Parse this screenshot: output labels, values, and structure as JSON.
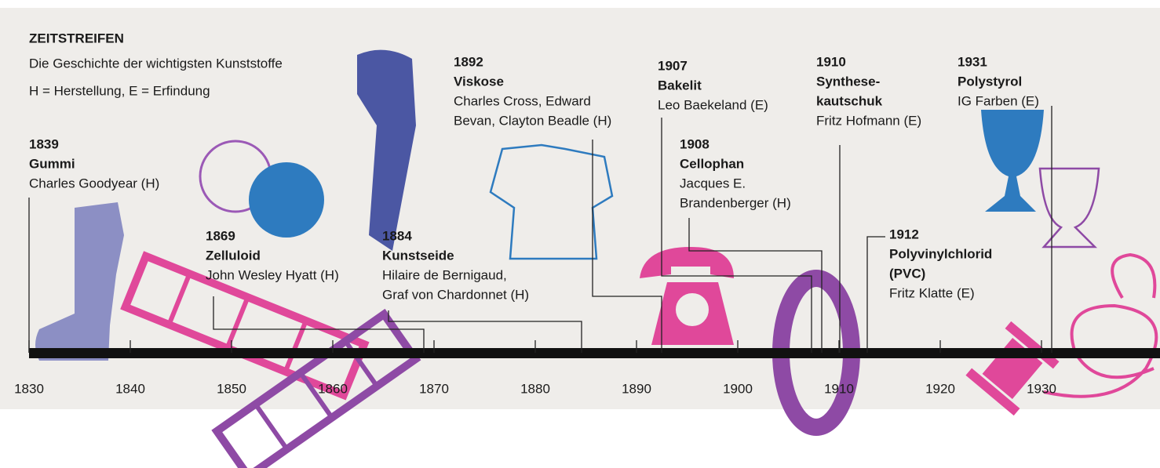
{
  "header": {
    "title": "ZEITSTREIFEN",
    "subtitle": "Die Geschichte der wichtigsten Kunststoffe",
    "legend": "H = Herstellung, E = Erfindung"
  },
  "axis": {
    "ticks": [
      1830,
      1840,
      1850,
      1860,
      1870,
      1880,
      1890,
      1900,
      1910,
      1920,
      1930
    ]
  },
  "events": [
    {
      "year": "1839",
      "name": [
        "Gummi"
      ],
      "person": [
        "Charles Goodyear (H)"
      ]
    },
    {
      "year": "1869",
      "name": [
        "Zelluloid"
      ],
      "person": [
        "John Wesley Hyatt (H)"
      ]
    },
    {
      "year": "1884",
      "name": [
        "Kunstseide"
      ],
      "person": [
        "Hilaire de Bernigaud,",
        "Graf von Chardonnet (H)"
      ]
    },
    {
      "year": "1892",
      "name": [
        "Viskose"
      ],
      "person": [
        "Charles Cross, Edward",
        "Bevan, Clayton Beadle (H)"
      ]
    },
    {
      "year": "1907",
      "name": [
        "Bakelit"
      ],
      "person": [
        "Leo Baekeland (E)"
      ]
    },
    {
      "year": "1908",
      "name": [
        "Cellophan"
      ],
      "person": [
        "Jacques E.",
        "Brandenberger (H)"
      ]
    },
    {
      "year": "1910",
      "name": [
        "Synthese-",
        "kautschuk"
      ],
      "person": [
        "Fritz Hofmann (E)"
      ]
    },
    {
      "year": "1912",
      "name": [
        "Polyvinylchlorid",
        "(PVC)"
      ],
      "person": [
        "Fritz Klatte (E)"
      ]
    },
    {
      "year": "1931",
      "name": [
        "Polystyrol"
      ],
      "person": [
        "IG Farben (E)"
      ]
    }
  ]
}
